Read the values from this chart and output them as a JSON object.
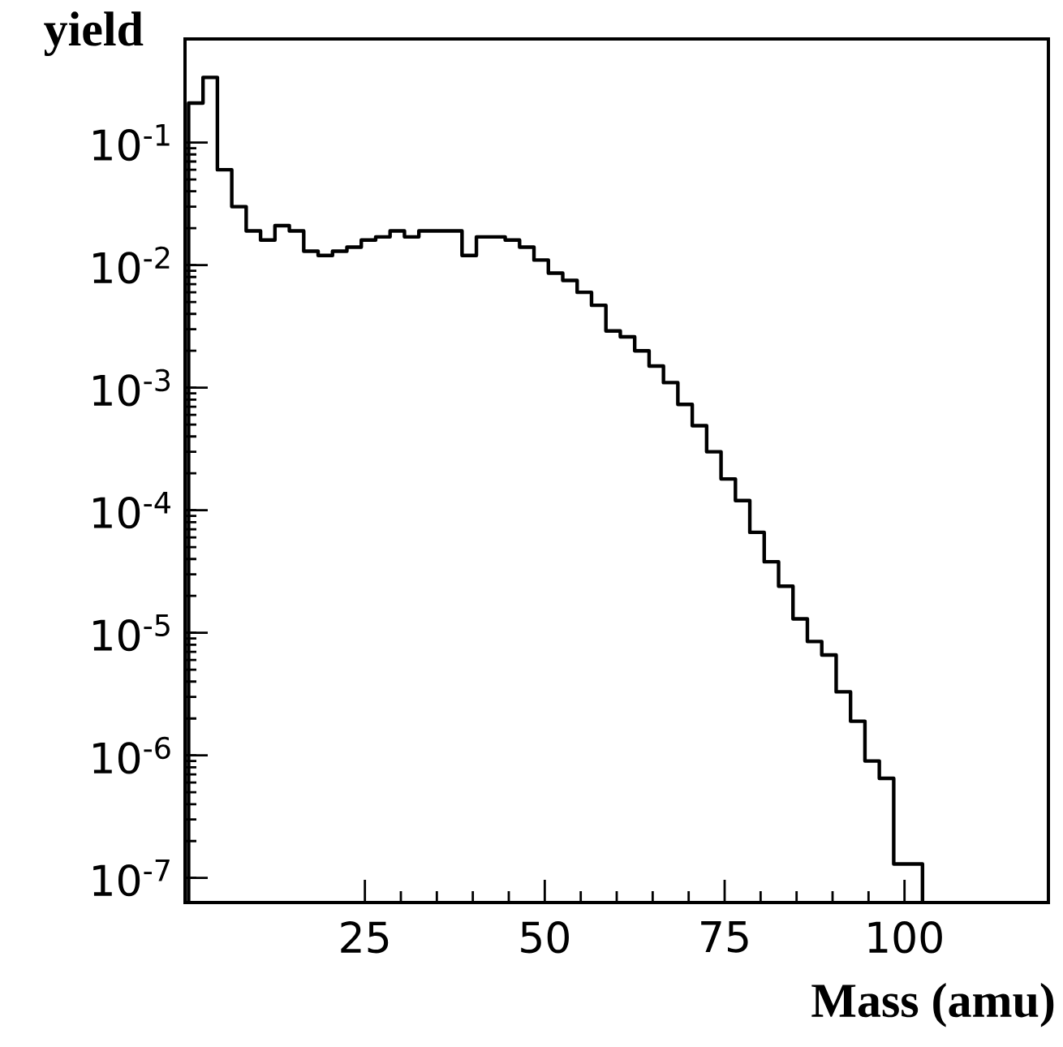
{
  "chart_data": {
    "type": "histogram",
    "xlabel": "Mass (amu)",
    "ylabel": "yield",
    "log": "y",
    "grid": false,
    "color": "#000000",
    "xlim": [
      0,
      120
    ],
    "ylim": [
      6.3e-08,
      0.7
    ],
    "xticks": [
      25,
      50,
      75,
      100
    ],
    "yticks": [
      {
        "value": 1e-07,
        "label": "10$^{-7}$"
      },
      {
        "value": 1e-06,
        "label": "10$^{-6}$"
      },
      {
        "value": 1e-05,
        "label": "10$^{-5}$"
      },
      {
        "value": 0.0001,
        "label": "10$^{-4}$"
      },
      {
        "value": 0.001,
        "label": "10$^{-3}$"
      },
      {
        "value": 0.01,
        "label": "10$^{-2}$"
      },
      {
        "value": 0.1,
        "label": "10$^{-1}$"
      }
    ],
    "bins": [
      0.5,
      2.5,
      4.5,
      6.5,
      8.5,
      10.5,
      12.5,
      14.5,
      16.5,
      18.5,
      20.5,
      22.5,
      24.5,
      26.5,
      28.5,
      30.5,
      32.5,
      34.5,
      36.5,
      38.5,
      40.5,
      42.5,
      44.5,
      46.5,
      48.5,
      50.5,
      52.5,
      54.5,
      56.5,
      58.5,
      60.5,
      62.5,
      64.5,
      66.5,
      68.5,
      70.5,
      72.5,
      74.5,
      76.5,
      78.5,
      80.5,
      82.5,
      84.5,
      86.5,
      88.5,
      90.5,
      92.5,
      94.5,
      96.5,
      98.5,
      100.5,
      102.5
    ],
    "values": [
      0.21,
      0.34,
      0.06,
      0.03,
      0.019,
      0.016,
      0.021,
      0.019,
      0.013,
      0.012,
      0.013,
      0.014,
      0.016,
      0.017,
      0.019,
      0.017,
      0.019,
      0.019,
      0.019,
      0.012,
      0.017,
      0.017,
      0.016,
      0.014,
      0.011,
      0.0086,
      0.0075,
      0.006,
      0.0047,
      0.0029,
      0.0026,
      0.002,
      0.0015,
      0.0011,
      0.00073,
      0.00049,
      0.0003,
      0.00018,
      0.00012,
      6.6e-05,
      3.8e-05,
      2.4e-05,
      1.3e-05,
      8.5e-06,
      6.6e-06,
      3.3e-06,
      1.9e-06,
      9e-07,
      6.5e-07,
      1.3e-07,
      1.3e-07
    ]
  }
}
